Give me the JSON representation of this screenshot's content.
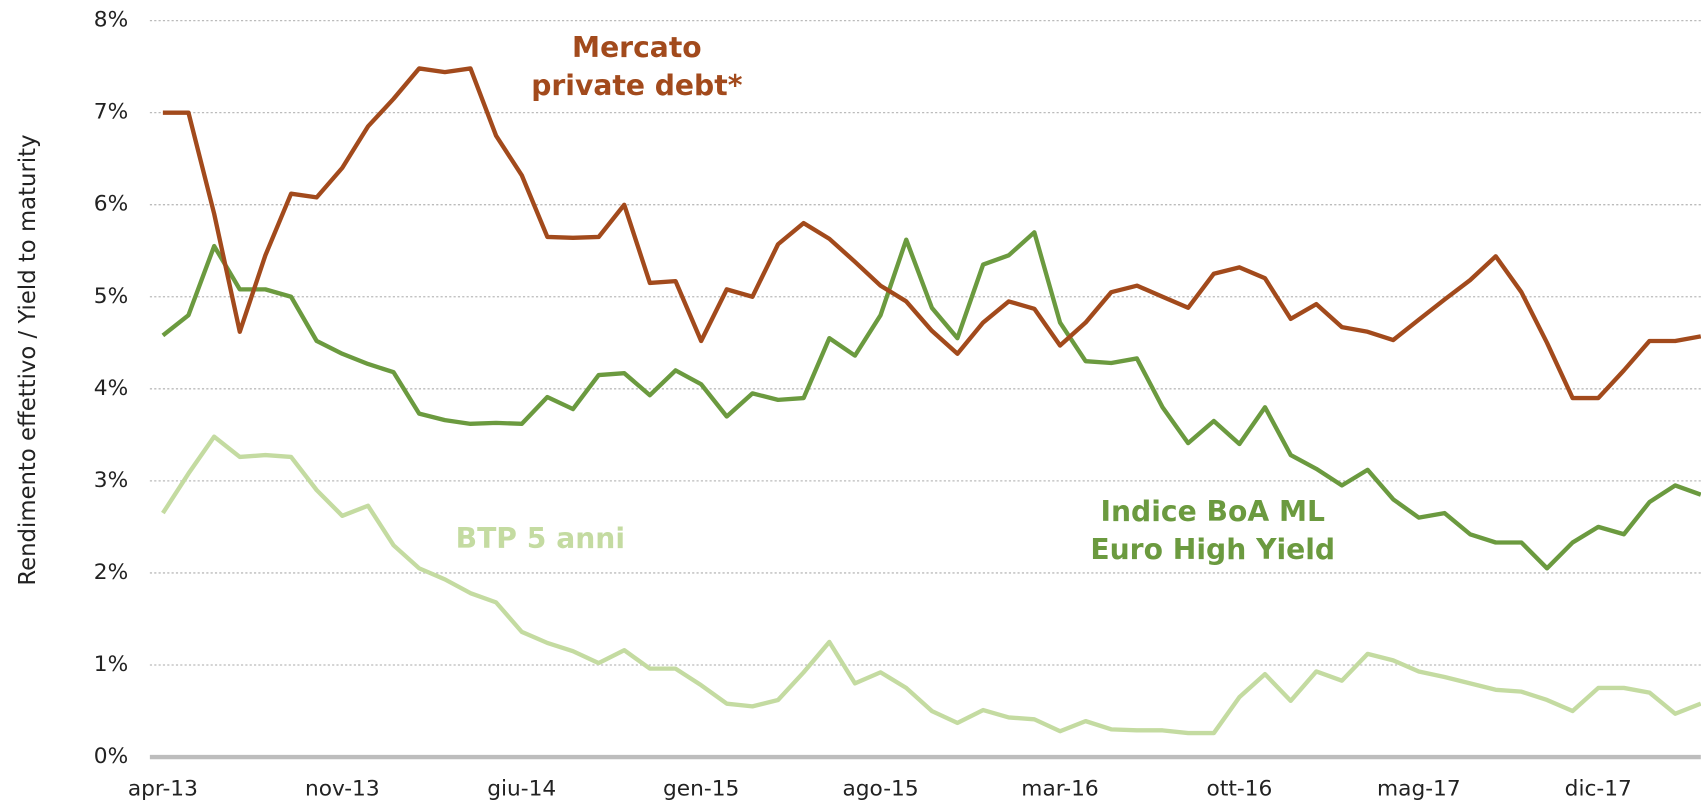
{
  "chart_data": {
    "type": "line",
    "ylabel": "Rendimento effettivo / Yield to maturity",
    "categories": [
      "apr-13",
      null,
      null,
      null,
      null,
      null,
      null,
      "nov-13",
      null,
      null,
      null,
      null,
      null,
      null,
      "giu-14",
      null,
      null,
      null,
      null,
      null,
      null,
      "gen-15",
      null,
      null,
      null,
      null,
      null,
      null,
      "ago-15",
      null,
      null,
      null,
      null,
      null,
      null,
      "mar-16",
      null,
      null,
      null,
      null,
      null,
      null,
      "ott-16",
      null,
      null,
      null,
      null,
      null,
      null,
      "mag-17",
      null,
      null,
      null,
      null,
      null,
      null,
      "dic-17",
      null,
      null,
      null,
      null
    ],
    "ylim": [
      0,
      8
    ],
    "yticks": [
      {
        "value": 0,
        "label": "0%"
      },
      {
        "value": 1,
        "label": "1%"
      },
      {
        "value": 2,
        "label": "2%"
      },
      {
        "value": 3,
        "label": "3%"
      },
      {
        "value": 4,
        "label": "4%"
      },
      {
        "value": 5,
        "label": "5%"
      },
      {
        "value": 6,
        "label": "6%"
      },
      {
        "value": 7,
        "label": "7%"
      },
      {
        "value": 8,
        "label": "8%"
      }
    ],
    "grid": true,
    "series": [
      {
        "name": [
          "Mercato",
          "private debt*"
        ],
        "color": "#a24a1c",
        "values": [
          7.0,
          7.0,
          5.9,
          4.62,
          5.45,
          6.12,
          6.08,
          6.4,
          6.85,
          7.15,
          7.48,
          7.44,
          7.48,
          6.75,
          6.32,
          5.65,
          5.64,
          5.65,
          6.0,
          5.15,
          5.17,
          4.52,
          5.08,
          5.0,
          5.57,
          5.8,
          5.63,
          5.38,
          5.12,
          4.95,
          4.63,
          4.38,
          4.72,
          4.95,
          4.87,
          4.47,
          4.72,
          5.05,
          5.12,
          5.0,
          4.88,
          5.25,
          5.32,
          5.2,
          4.76,
          4.92,
          4.67,
          4.62,
          4.53,
          4.75,
          4.97,
          5.18,
          5.44,
          5.05,
          4.5,
          3.9,
          3.9,
          4.2,
          4.52,
          4.52,
          4.57
        ]
      },
      {
        "name": [
          "Indice BoA ML",
          "Euro High Yield"
        ],
        "color": "#6b9a3f",
        "values": [
          4.58,
          4.8,
          5.55,
          5.08,
          5.08,
          5.0,
          4.52,
          4.38,
          4.27,
          4.18,
          3.73,
          3.66,
          3.62,
          3.63,
          3.62,
          3.91,
          3.78,
          4.15,
          4.17,
          3.93,
          4.2,
          4.05,
          3.7,
          3.95,
          3.88,
          3.9,
          4.55,
          4.36,
          4.8,
          5.62,
          4.88,
          4.55,
          5.35,
          5.45,
          5.7,
          4.72,
          4.3,
          4.28,
          4.33,
          3.8,
          3.41,
          3.65,
          3.4,
          3.8,
          3.28,
          3.13,
          2.95,
          3.12,
          2.8,
          2.6,
          2.65,
          2.42,
          2.33,
          2.33,
          2.05,
          2.33,
          2.5,
          2.42,
          2.77,
          2.95,
          2.85
        ]
      },
      {
        "name": [
          "BTP 5 anni"
        ],
        "color": "#c4dba1",
        "values": [
          2.65,
          3.08,
          3.48,
          3.26,
          3.28,
          3.26,
          2.9,
          2.62,
          2.73,
          2.3,
          2.05,
          1.93,
          1.78,
          1.68,
          1.36,
          1.24,
          1.15,
          1.02,
          1.16,
          0.96,
          0.96,
          0.78,
          0.58,
          0.55,
          0.62,
          0.92,
          1.25,
          0.8,
          0.92,
          0.75,
          0.5,
          0.37,
          0.51,
          0.43,
          0.41,
          0.28,
          0.39,
          0.3,
          0.29,
          0.29,
          0.26,
          0.26,
          0.65,
          0.9,
          0.61,
          0.93,
          0.83,
          1.12,
          1.05,
          0.93,
          0.87,
          0.8,
          0.73,
          0.71,
          0.62,
          0.5,
          0.75,
          0.75,
          0.7,
          0.47,
          0.58
        ]
      }
    ]
  }
}
